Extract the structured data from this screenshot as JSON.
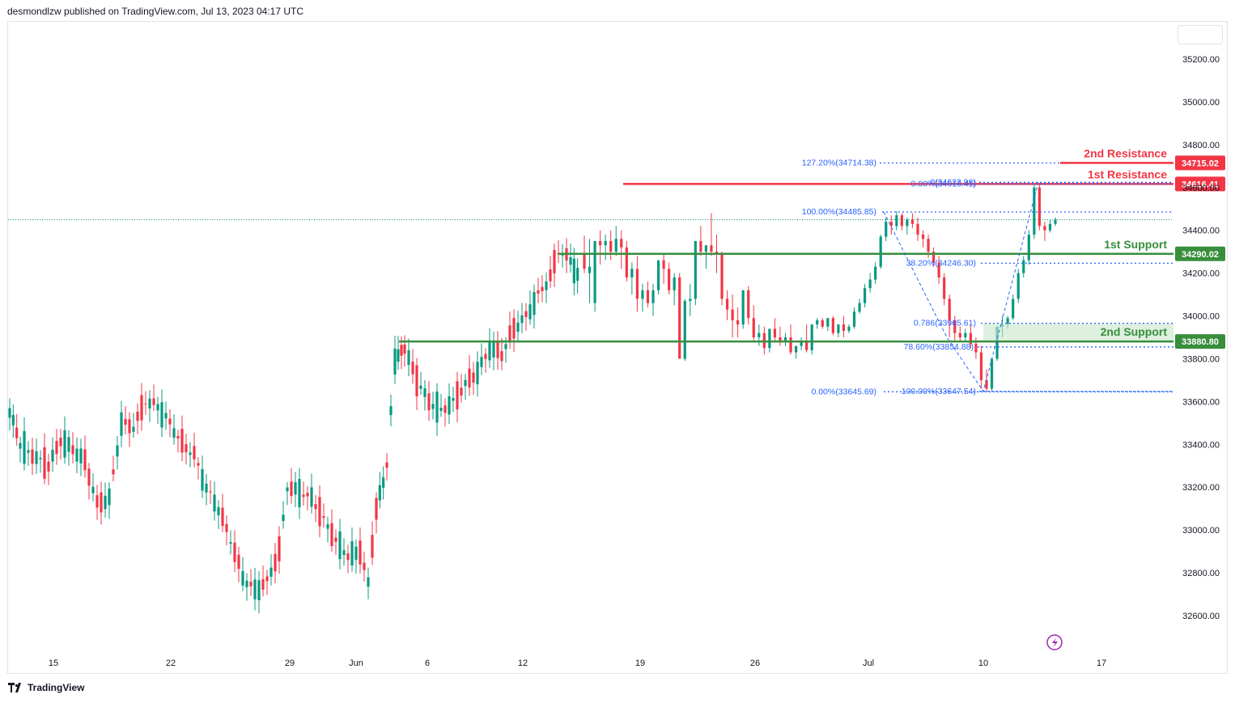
{
  "header": {
    "text": "desmondlzw published on TradingView.com, Jul 13, 2023 04:17 UTC"
  },
  "footer": {
    "brand": "TradingView",
    "logo_icon": "tradingview-logo-icon"
  },
  "colors": {
    "up": "#089981",
    "down": "#f23645",
    "resistance": "#f23645",
    "support": "#388e3c",
    "fib": "#2962ff",
    "fib_text": "#2962ff",
    "axis_text": "#131722"
  },
  "chart_data": {
    "type": "candlestick",
    "ylim": [
      32500,
      35350
    ],
    "y_ticks": [
      "35200.00",
      "35000.00",
      "34800.00",
      "34600.00",
      "34400.00",
      "34200.00",
      "34000.00",
      "33800.00",
      "33600.00",
      "33400.00",
      "33200.00",
      "33000.00",
      "32800.00",
      "32600.00"
    ],
    "x_ticks": [
      "15",
      "22",
      "29",
      "Jun",
      "6",
      "12",
      "19",
      "26",
      "Jul",
      "10",
      "17"
    ],
    "last_price": 34450,
    "levels": [
      {
        "name": "2nd Resistance",
        "price": 34715.02,
        "label": "34715.02",
        "kind": "resistance"
      },
      {
        "name": "1st Resistance",
        "price": 34616.41,
        "label": "34616.41",
        "kind": "resistance"
      },
      {
        "name": "1st Support",
        "price": 34290.02,
        "label": "34290.02",
        "kind": "support"
      },
      {
        "name": "2nd Support",
        "price": 33880.8,
        "label": "33880.80",
        "kind": "support"
      }
    ],
    "fib_labels": [
      {
        "text": "127.20%(34714.38)",
        "price": 34714.38
      },
      {
        "text": "0(34623.98)",
        "price": 34623.98
      },
      {
        "text": "0.00%(34616.41)",
        "price": 34616.41
      },
      {
        "text": "100.00%(34485.85)",
        "price": 34485.85
      },
      {
        "text": "38.20%(34246.30)",
        "price": 34246.3
      },
      {
        "text": "0.786(33965.61)",
        "price": 33965.61
      },
      {
        "text": "78.60%(33854.88)",
        "price": 33854.88
      },
      {
        "text": "0.00%(33645.69)",
        "price": 33645.69
      },
      {
        "text": "100.00%(33647.54)",
        "price": 33647.54
      }
    ],
    "candles": [
      [
        34290,
        34375,
        34220,
        34200
      ],
      [
        34200,
        34360,
        34230,
        34060
      ],
      [
        34060,
        34200,
        34350,
        34020
      ],
      [
        34350,
        34400,
        34330,
        34240
      ],
      [
        34330,
        34380,
        34350,
        34260
      ],
      [
        34350,
        34400,
        34300,
        34260
      ],
      [
        34300,
        34420,
        34360,
        34280
      ],
      [
        34360,
        34400,
        34320,
        34220
      ],
      [
        34320,
        34350,
        34180,
        34160
      ],
      [
        34180,
        34250,
        34220,
        34100
      ],
      [
        34220,
        34280,
        34080,
        34020
      ],
      [
        34080,
        34150,
        34120,
        34020
      ],
      [
        34120,
        34160,
        34060,
        34040
      ],
      [
        34060,
        34150,
        34120,
        34000
      ],
      [
        34120,
        34200,
        34260,
        34100
      ],
      [
        34260,
        34290,
        34220,
        34150
      ],
      [
        34220,
        34250,
        34120,
        34100
      ],
      [
        34120,
        34200,
        34180,
        34050
      ],
      [
        34180,
        34200,
        33800,
        33800
      ],
      [
        33800,
        34080,
        34070,
        33790
      ],
      [
        34070,
        34150,
        34080,
        34000
      ],
      [
        34080,
        34350,
        34350,
        34050
      ],
      [
        34350,
        34420,
        34300,
        34280
      ],
      [
        34300,
        34330,
        34330,
        34220
      ],
      [
        34330,
        34480,
        34300,
        34280
      ],
      [
        34300,
        34380,
        34290,
        34200
      ],
      [
        34290,
        34300,
        34080,
        34050
      ],
      [
        34080,
        34120,
        34030,
        33980
      ],
      [
        34030,
        34100,
        33980,
        33900
      ],
      [
        33980,
        34040,
        33960,
        33900
      ],
      [
        33960,
        34000,
        34120,
        33940
      ],
      [
        34120,
        34140,
        33990,
        33960
      ],
      [
        33990,
        34050,
        33900,
        33880
      ],
      [
        33900,
        33960,
        33920,
        33860
      ],
      [
        33920,
        33950,
        33850,
        33820
      ],
      [
        33850,
        33900,
        33940,
        33830
      ],
      [
        33940,
        33990,
        33900,
        33880
      ],
      [
        33900,
        33950,
        33880,
        33860
      ],
      [
        33880,
        33920,
        33900,
        33860
      ],
      [
        33900,
        33960,
        33830,
        33820
      ],
      [
        33830,
        33850,
        33860,
        33800
      ],
      [
        33860,
        33900,
        33880,
        33840
      ],
      [
        33880,
        33960,
        33840,
        33830
      ],
      [
        33840,
        33960,
        33960,
        33820
      ],
      [
        33960,
        33990,
        33980,
        33940
      ],
      [
        33980,
        33990,
        33950,
        33940
      ],
      [
        33950,
        33990,
        33990,
        33930
      ],
      [
        33990,
        34000,
        33920,
        33910
      ],
      [
        33920,
        33940,
        33960,
        33900
      ],
      [
        33960,
        34000,
        33930,
        33900
      ],
      [
        33930,
        33960,
        33950,
        33920
      ],
      [
        33950,
        34040,
        34020,
        33940
      ],
      [
        34020,
        34080,
        34060,
        34010
      ],
      [
        34060,
        34150,
        34130,
        34040
      ],
      [
        34130,
        34200,
        34170,
        34110
      ],
      [
        34170,
        34250,
        34230,
        34150
      ],
      [
        34230,
        34380,
        34370,
        34220
      ],
      [
        34370,
        34460,
        34440,
        34350
      ],
      [
        34440,
        34470,
        34420,
        34380
      ],
      [
        34420,
        34490,
        34470,
        34400
      ]
    ],
    "candles_jul": [
      [
        34470,
        34480,
        34420,
        34400
      ],
      [
        34420,
        34460,
        34450,
        34380
      ],
      [
        34450,
        34480,
        34430,
        34410
      ],
      [
        34430,
        34460,
        34380,
        34350
      ],
      [
        34380,
        34400,
        34360,
        34320
      ],
      [
        34360,
        34380,
        34300,
        34270
      ],
      [
        34300,
        34320,
        34250,
        34230
      ],
      [
        34250,
        34280,
        34180,
        34150
      ],
      [
        34180,
        34200,
        34080,
        34050
      ],
      [
        34080,
        34100,
        33980,
        33900
      ],
      [
        33980,
        34000,
        33920,
        33880
      ],
      [
        33920,
        33950,
        33900,
        33880
      ],
      [
        33900,
        33940,
        33920,
        33880
      ],
      [
        33920,
        33960,
        33870,
        33850
      ],
      [
        33870,
        33900,
        33830,
        33800
      ],
      [
        33830,
        33860,
        33700,
        33660
      ],
      [
        33700,
        33750,
        33660,
        33645
      ],
      [
        33660,
        33800,
        33800,
        33650
      ],
      [
        33800,
        33900,
        33950,
        33790
      ],
      [
        33950,
        34000,
        33960,
        33900
      ],
      [
        33960,
        34000,
        33990,
        33940
      ],
      [
        33990,
        34100,
        34080,
        33980
      ],
      [
        34080,
        34220,
        34200,
        34060
      ],
      [
        34200,
        34280,
        34260,
        34180
      ],
      [
        34260,
        34400,
        34380,
        34240
      ],
      [
        34380,
        34620,
        34600,
        34360
      ],
      [
        34600,
        34616,
        34420,
        34400
      ],
      [
        34420,
        34440,
        34400,
        34350
      ],
      [
        34400,
        34450,
        34430,
        34390
      ],
      [
        34430,
        34460,
        34450,
        34420
      ]
    ]
  }
}
